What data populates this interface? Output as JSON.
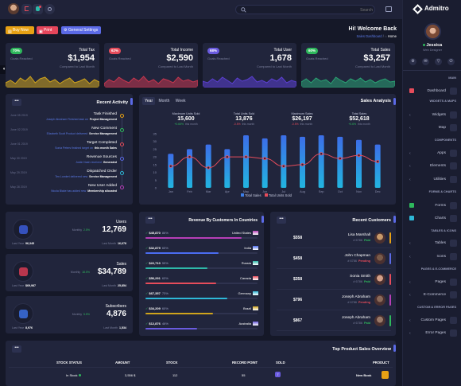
{
  "brand": "Admitro",
  "search": {
    "placeholder": "Search"
  },
  "header": {
    "welcome": "Hi! Welcome Back",
    "breadcrumb": "Sales Dashboard",
    "home": "Home"
  },
  "buttons": {
    "buy": "Buy Now",
    "print": "Print",
    "settings": "General Settings"
  },
  "stats": [
    {
      "pct": "70%",
      "label": "Total Tax",
      "value": "$1,954",
      "sub": "Goals Reached",
      "note": "Compared to Last Month",
      "color": "#2eb85c",
      "wave": "#d0a41c"
    },
    {
      "pct": "62%",
      "label": "Total Income",
      "value": "$2,590",
      "sub": "Goals Reached",
      "note": "Compared to Last Month",
      "color": "#e64c5b",
      "wave": "#c7364e"
    },
    {
      "pct": "68%",
      "label": "Total User",
      "value": "1,678",
      "sub": "Goals Reached",
      "note": "Compared to Last Month",
      "color": "#6a5bdf",
      "wave": "#5b3fd1"
    },
    {
      "pct": "60%",
      "label": "Total Sales",
      "value": "$3,257",
      "sub": "Goals Reached",
      "note": "Compared to Last Month",
      "color": "#2eb85c",
      "wave": "#2aa373"
    }
  ],
  "activity": {
    "title": "Recent Activity",
    "items": [
      {
        "date": "June 05 2019",
        "title": "Task Finished",
        "desc": "Joseph Abraham Finished task on",
        "strong": "Project Management"
      },
      {
        "date": "June 02 2019",
        "title": "New Comment",
        "desc": "Elizabeth Scott Product delivered",
        "strong": "Service Management"
      },
      {
        "date": "June 01 2019",
        "title": "Target Completed",
        "desc": "Sonia Peters finished target on",
        "strong": "this month Sales"
      },
      {
        "date": "May 30 2019",
        "title": "Revenue Sources",
        "desc": "Justin Nash received",
        "strong": "Generated"
      },
      {
        "date": "May 29 2019",
        "title": "Dispatched Order",
        "desc": "Ten Lomlert delivered new",
        "strong": "Service Management"
      },
      {
        "date": "May 28 2019",
        "title": "New User Added",
        "desc": "Nicola Blake has added new",
        "strong": "Membership allocated"
      }
    ]
  },
  "sales_analysis": {
    "title": "Sales Analysis",
    "tabs": [
      "Year",
      "Month",
      "Week"
    ],
    "kpis": [
      {
        "label": "Maximum Units Sold",
        "value": "15,600",
        "delta": "+0.65%",
        "deltanote": "this month",
        "color": "#2eb85c"
      },
      {
        "label": "Total Units Sold",
        "value": "13,876",
        "delta": "-0.5%",
        "deltanote": "this month",
        "color": "#e64c5b"
      },
      {
        "label": "Maximum Sales",
        "value": "$26,197",
        "delta": "-0.5%",
        "deltanote": "this month",
        "color": "#e64c5b"
      },
      {
        "label": "Total Sales",
        "value": "$52,618",
        "delta": "+0.6%",
        "deltanote": "this month",
        "color": "#2eb85c"
      }
    ],
    "legend": [
      "Total Sales",
      "Total Units Sold"
    ]
  },
  "chart_data": {
    "type": "bar",
    "title": "Sales Analysis",
    "categories": [
      "Jan",
      "Feb",
      "Mar",
      "Apr",
      "May",
      "Jun",
      "Jul",
      "Aug",
      "Sep",
      "Oct",
      "Nov",
      "Dec"
    ],
    "ylim": [
      0,
      35
    ],
    "yticks": [
      0,
      5,
      10,
      15,
      20,
      25,
      30,
      35
    ],
    "series": [
      {
        "name": "Total Sales",
        "type": "bar",
        "values": [
          22,
          25,
          28,
          25,
          34,
          32,
          34,
          33,
          34,
          33,
          31,
          28
        ]
      },
      {
        "name": "Total Units Sold",
        "type": "line",
        "values": [
          14,
          20,
          13,
          20,
          20,
          19,
          14,
          15,
          22,
          19,
          21,
          17
        ]
      }
    ]
  },
  "mini": [
    {
      "label": "Users",
      "value": "12,769",
      "note1": "Monthly",
      "delta": "2.5%",
      "note2": "Last Year",
      "v1": "96,345",
      "note3": "Last Month",
      "v2": "16,678",
      "icolor": "#3b5bd6"
    },
    {
      "label": "Sales",
      "value": "$34,789",
      "note1": "Monthly",
      "delta": "18.5%",
      "note2": "Last Year",
      "v1": "$69,987",
      "note3": "Last Month",
      "v2": "25,854",
      "icolor": "#d63b52"
    },
    {
      "label": "Subscribers",
      "value": "4,876",
      "note1": "Monthly",
      "delta": "5.5%",
      "note2": "Last Year",
      "v1": "8,976",
      "note3": "Last Month",
      "v2": "1,534",
      "icolor": "#3b6ee0"
    }
  ],
  "revenue": {
    "title": "Revenue By Customers In Countries",
    "rows": [
      {
        "amt": "$45,870",
        "pct": "86%",
        "country": "United States",
        "fill": 0.86,
        "color": "#b63eb7"
      },
      {
        "amt": "$32,879",
        "pct": "65%",
        "country": "India",
        "fill": 0.65,
        "color": "#4b6cf0"
      },
      {
        "amt": "$22,710",
        "pct": "55%",
        "country": "Russia",
        "fill": 0.55,
        "color": "#2eb8a8"
      },
      {
        "amt": "$56,291",
        "pct": "63%",
        "country": "Canada",
        "fill": 0.63,
        "color": "#e64c5b"
      },
      {
        "amt": "$67,357",
        "pct": "73%",
        "country": "Germany",
        "fill": 0.73,
        "color": "#2eb8d8"
      },
      {
        "amt": "$34,209",
        "pct": "60%",
        "country": "Brazil",
        "fill": 0.6,
        "color": "#d0a41c"
      },
      {
        "amt": "$12,876",
        "pct": "46%",
        "country": "Australia",
        "fill": 0.46,
        "color": "#6a5bdf"
      }
    ]
  },
  "customers": {
    "title": "Recent Customers",
    "rows": [
      {
        "amount": "$558",
        "name": "Lisa Marshall",
        "id": "# 6786",
        "status": "Paid",
        "scolor": "#2eb85c",
        "avatar": "#c99a6a"
      },
      {
        "amount": "$458",
        "name": "John Chapman",
        "id": "# 6786",
        "status": "Pending",
        "scolor": "#e64c5b",
        "avatar": "#7a5b4a"
      },
      {
        "amount": "$358",
        "name": "Sonia Smith",
        "id": "# 6786",
        "status": "Paid",
        "scolor": "#2eb85c",
        "avatar": "#d4a08a"
      },
      {
        "amount": "$796",
        "name": "Joseph Abraham",
        "id": "# 6786",
        "status": "Pending",
        "scolor": "#e64c5b",
        "avatar": "#8a6a5a"
      },
      {
        "amount": "$867",
        "name": "Joseph Abraham",
        "id": "# 6786",
        "status": "Paid",
        "scolor": "#2eb85c",
        "avatar": "#9a7a6a"
      }
    ]
  },
  "overview": {
    "title": "Top Product Sales Overview",
    "headers": [
      "STOCK STATUS",
      "AMOUNT",
      "STOCK",
      "RECORD POINT",
      "SOLD",
      "PRODUCT"
    ],
    "row": {
      "status": "In Stock",
      "amount": "3,556 $",
      "stock": "112",
      "record": "55",
      "sold": "7",
      "product": "New Book"
    }
  },
  "profile": {
    "name": "Jessica",
    "role": "Web Designer"
  },
  "sidebar": {
    "main": "MAIN",
    "dashboard": "Dashboard",
    "widgets_sec": "WIDGETS & MAPS",
    "widgets": "Widgets",
    "map": "Map",
    "comp_sec": "COMPONENTS",
    "apps": "Apps",
    "elements": "Elements",
    "utilities": "Utilities",
    "forms_sec": "FORMS & CHARTS",
    "forms": "Forms",
    "charts": "Charts",
    "tables_sec": "TABLES & ICONS",
    "tables": "Tables",
    "icons": "Icons",
    "pages_sec": "PAGES & E-COMMERCE",
    "pages": "Pages",
    "ecommerce": "E-Commerce",
    "custom_sec": "CUSTOM & ERROR PAGES",
    "custom": "Custom Pages",
    "error": "Error Pages"
  }
}
